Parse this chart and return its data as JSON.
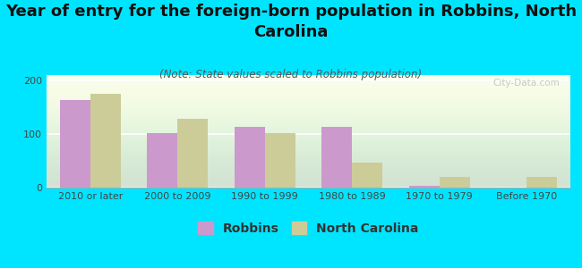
{
  "title": "Year of entry for the foreign-born population in Robbins, North\nCarolina",
  "subtitle": "(Note: State values scaled to Robbins population)",
  "categories": [
    "2010 or later",
    "2000 to 2009",
    "1990 to 1999",
    "1980 to 1989",
    "1970 to 1979",
    "Before 1970"
  ],
  "robbins_values": [
    163,
    101,
    113,
    113,
    3,
    0
  ],
  "nc_values": [
    175,
    128,
    101,
    47,
    20,
    20
  ],
  "robbins_color": "#cc99cc",
  "nc_color": "#cccc99",
  "background_outer": "#00e5ff",
  "background_plot_top": "#e8f0d8",
  "background_plot_bottom": "#f8fdf0",
  "ylim": [
    0,
    210
  ],
  "yticks": [
    0,
    100,
    200
  ],
  "bar_width": 0.35,
  "title_fontsize": 13,
  "subtitle_fontsize": 8.5,
  "tick_fontsize": 8,
  "legend_fontsize": 10,
  "watermark_text": "City-Data.com"
}
